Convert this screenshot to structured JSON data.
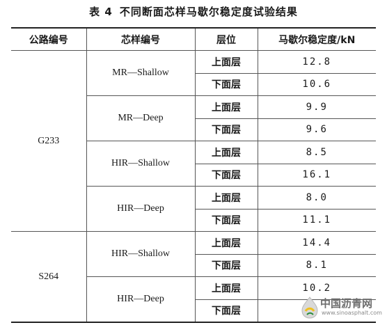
{
  "caption": {
    "number": "表 4",
    "title": "不同断面芯样马歇尔稳定度试验结果"
  },
  "headers": [
    "公路编号",
    "芯样编号",
    "层位",
    "马歇尔稳定度/kN"
  ],
  "roads": [
    {
      "name": "G233",
      "samples": [
        {
          "name": "MR—Shallow",
          "rows": [
            {
              "layer": "上面层",
              "value": "12.8"
            },
            {
              "layer": "下面层",
              "value": "10.6"
            }
          ]
        },
        {
          "name": "MR—Deep",
          "rows": [
            {
              "layer": "上面层",
              "value": "9.9"
            },
            {
              "layer": "下面层",
              "value": "9.6"
            }
          ]
        },
        {
          "name": "HIR—Shallow",
          "rows": [
            {
              "layer": "上面层",
              "value": "8.5"
            },
            {
              "layer": "下面层",
              "value": "16.1"
            }
          ]
        },
        {
          "name": "HIR—Deep",
          "rows": [
            {
              "layer": "上面层",
              "value": "8.0"
            },
            {
              "layer": "下面层",
              "value": "11.1"
            }
          ]
        }
      ]
    },
    {
      "name": "S264",
      "samples": [
        {
          "name": "HIR—Shallow",
          "rows": [
            {
              "layer": "上面层",
              "value": "14.4"
            },
            {
              "layer": "下面层",
              "value": "8.1"
            }
          ]
        },
        {
          "name": "HIR—Deep",
          "rows": [
            {
              "layer": "上面层",
              "value": "10.2"
            },
            {
              "layer": "下面层",
              "value": ""
            }
          ]
        }
      ]
    }
  ],
  "watermark": {
    "cn": "中国沥青网",
    "url": "www.sinoasphalt.com",
    "logo": "asphalt-logo-icon"
  }
}
